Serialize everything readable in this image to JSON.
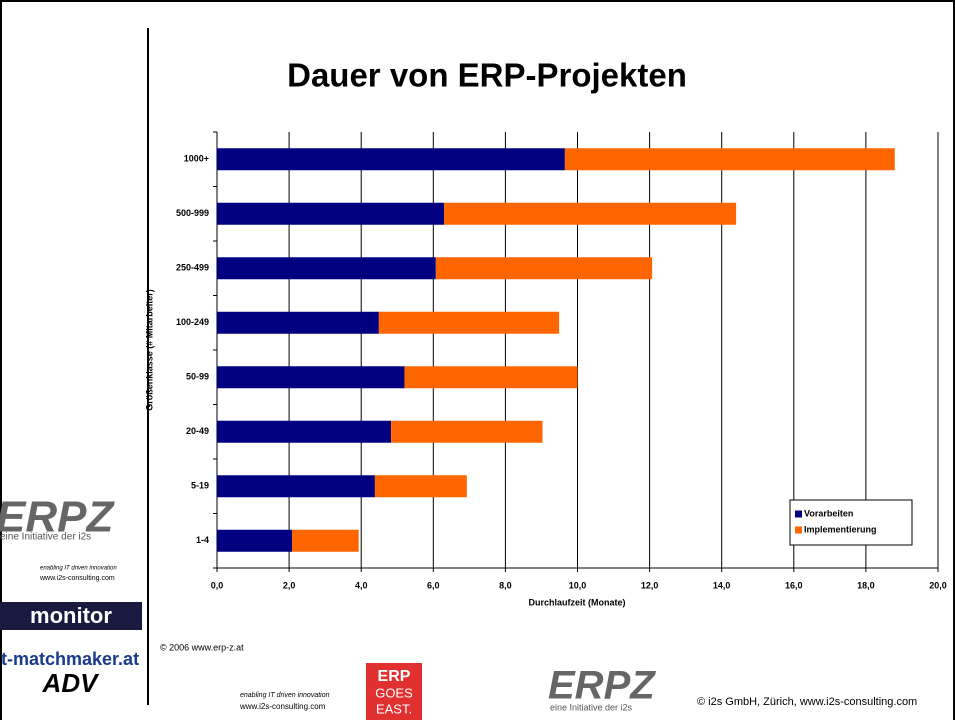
{
  "chart_data": {
    "type": "stacked-barh",
    "title": "Dauer von ERP-Projekten",
    "x_label": "Durchlaufzeit (Monate)",
    "y_label": "Größenklasse (# Mitarbeiter)",
    "categories": [
      "1000+",
      "500-999",
      "250-499",
      "100-249",
      "50-99",
      "20-49",
      "5-19",
      "1-4"
    ],
    "series": [
      {
        "name": "Vorarbeiten",
        "color": "#000080",
        "values": [
          9.65,
          6.3,
          6.07,
          4.49,
          5.2,
          4.83,
          4.38,
          2.08
        ]
      },
      {
        "name": "Implementierung",
        "color": "#ff6600",
        "values": [
          9.15,
          8.1,
          6.0,
          5.0,
          4.8,
          4.2,
          2.55,
          1.85
        ]
      }
    ],
    "xlim": [
      0,
      20
    ],
    "xticks": [
      {
        "value": 0,
        "label": "0,0"
      },
      {
        "value": 2,
        "label": "2,0"
      },
      {
        "value": 4,
        "label": "4,0"
      },
      {
        "value": 6,
        "label": "6,0"
      },
      {
        "value": 8,
        "label": "8,0"
      },
      {
        "value": 10,
        "label": "10,0"
      },
      {
        "value": 12,
        "label": "12,0"
      },
      {
        "value": 14,
        "label": "14,0"
      },
      {
        "value": 16,
        "label": "16,0"
      },
      {
        "value": 18,
        "label": "18,0"
      },
      {
        "value": 20,
        "label": "20,0"
      }
    ],
    "grid": true,
    "legend": "lower right"
  },
  "slide": {
    "logo_erpz": "ERPZ",
    "logo_tagline": "eine Initiative der i2s",
    "logo_i2s_url": "www.i2s-consulting.com",
    "logo_i2s_script": "enabling IT driven innovation",
    "logo_monitor": "monitor",
    "logo_matchmaker": "it-matchmaker.at",
    "logo_adv": "ADV",
    "copyright_left": "© 2006 www.erp-z.at",
    "logo_erp": "ERP",
    "logo_goes": "GOES",
    "logo_east": "EAST.",
    "copyright_right": "© i2s GmbH, Zürich, www.i2s-consulting.com"
  }
}
